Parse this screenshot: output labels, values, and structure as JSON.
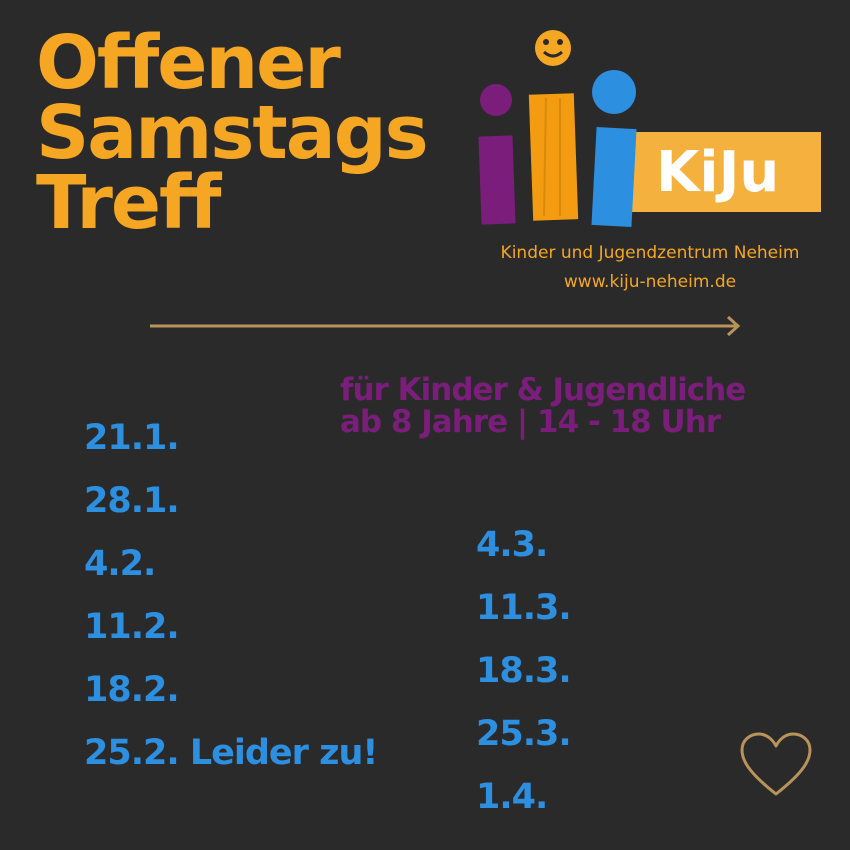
{
  "title": {
    "line1": "Offener",
    "line2": "Samstags",
    "line3": "Treff"
  },
  "logo": {
    "text": "KiJu",
    "tagline": "Kinder und Jugendzentrum Neheim",
    "url": "www.kiju-neheim.de"
  },
  "audience": {
    "line1": "für Kinder & Jugendliche",
    "line2": "ab 8 Jahre | 14 - 18 Uhr"
  },
  "dates_left": [
    "21.1.",
    "28.1.",
    "4.2.",
    "11.2.",
    "18.2.",
    "25.2. Leider zu!"
  ],
  "dates_right": [
    "4.3.",
    "11.3.",
    "18.3.",
    "25.3.",
    "1.4."
  ],
  "icons": {
    "arrow": "arrow-right-icon",
    "heart": "heart-outline-icon"
  },
  "colors": {
    "background": "#2b2a2a",
    "accent": "#f5a623",
    "purple": "#7b1d7a",
    "blue": "#2d8fe0",
    "gold": "#b8935a"
  }
}
